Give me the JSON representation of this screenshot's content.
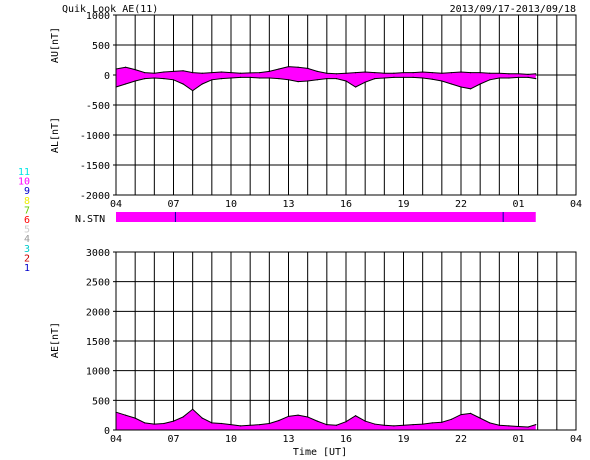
{
  "chart_data": [
    {
      "type": "area",
      "title": "Quik Look AE(11)",
      "date_range": "2013/09/17-2013/09/18",
      "ylabel_upper": "AU[nT]",
      "ylabel_lower": "AL[nT]",
      "ylim": [
        -2000,
        1000
      ],
      "y_ticks": [
        1000,
        500,
        0,
        -500,
        -1000,
        -1500,
        -2000
      ],
      "x_tick_labels": [
        "04",
        "07",
        "10",
        "13",
        "16",
        "19",
        "22",
        "01",
        "04"
      ],
      "fill_color": "#ff00ff",
      "grid": true,
      "series": [
        {
          "name": "AU",
          "x_hours": [
            4,
            4.5,
            5,
            5.5,
            6,
            6.5,
            7,
            7.5,
            8,
            8.5,
            9,
            9.5,
            10,
            10.5,
            11,
            11.5,
            12,
            12.5,
            13,
            13.5,
            14,
            14.5,
            15,
            15.5,
            16,
            16.5,
            17,
            17.5,
            18,
            18.5,
            19,
            19.5,
            20,
            20.5,
            21,
            21.5,
            22,
            22.5,
            23,
            23.5,
            24,
            24.5,
            25,
            25.5,
            25.9
          ],
          "values": [
            100,
            130,
            90,
            40,
            30,
            50,
            60,
            70,
            40,
            30,
            40,
            50,
            40,
            30,
            35,
            40,
            60,
            100,
            140,
            130,
            110,
            60,
            30,
            20,
            30,
            40,
            50,
            40,
            30,
            30,
            40,
            40,
            50,
            40,
            30,
            40,
            50,
            40,
            40,
            30,
            30,
            20,
            20,
            10,
            20
          ]
        },
        {
          "name": "AL",
          "x_hours": [
            4,
            4.5,
            5,
            5.5,
            6,
            6.5,
            7,
            7.5,
            8,
            8.5,
            9,
            9.5,
            10,
            10.5,
            11,
            11.5,
            12,
            12.5,
            13,
            13.5,
            14,
            14.5,
            15,
            15.5,
            16,
            16.5,
            17,
            17.5,
            18,
            18.5,
            19,
            19.5,
            20,
            20.5,
            21,
            21.5,
            22,
            22.5,
            23,
            23.5,
            24,
            24.5,
            25,
            25.5,
            25.9
          ],
          "values": [
            -200,
            -150,
            -100,
            -60,
            -50,
            -60,
            -80,
            -150,
            -260,
            -150,
            -80,
            -60,
            -50,
            -40,
            -40,
            -50,
            -50,
            -60,
            -80,
            -110,
            -100,
            -80,
            -60,
            -60,
            -100,
            -200,
            -120,
            -60,
            -50,
            -40,
            -40,
            -40,
            -50,
            -70,
            -100,
            -150,
            -200,
            -230,
            -150,
            -80,
            -50,
            -50,
            -40,
            -40,
            -60
          ]
        }
      ]
    },
    {
      "type": "area",
      "ylabel": "AE[nT]",
      "xlabel": "Time [UT]",
      "ylim": [
        0,
        3000
      ],
      "y_ticks": [
        3000,
        2500,
        2000,
        1500,
        1000,
        500,
        0
      ],
      "x_tick_labels": [
        "04",
        "07",
        "10",
        "13",
        "16",
        "19",
        "22",
        "01",
        "04"
      ],
      "fill_color": "#ff00ff",
      "grid": true,
      "series": [
        {
          "name": "AE",
          "x_hours": [
            4,
            4.5,
            5,
            5.5,
            6,
            6.5,
            7,
            7.5,
            8,
            8.5,
            9,
            9.5,
            10,
            10.5,
            11,
            11.5,
            12,
            12.5,
            13,
            13.5,
            14,
            14.5,
            15,
            15.5,
            16,
            16.5,
            17,
            17.5,
            18,
            18.5,
            19,
            19.5,
            20,
            20.5,
            21,
            21.5,
            22,
            22.5,
            23,
            23.5,
            24,
            24.5,
            25,
            25.5,
            25.9
          ],
          "values": [
            300,
            250,
            200,
            120,
            100,
            110,
            150,
            220,
            350,
            200,
            120,
            110,
            90,
            70,
            80,
            90,
            110,
            160,
            230,
            250,
            220,
            150,
            90,
            80,
            140,
            240,
            150,
            100,
            80,
            70,
            80,
            90,
            100,
            120,
            130,
            180,
            260,
            280,
            200,
            120,
            80,
            70,
            60,
            50,
            90
          ]
        }
      ]
    }
  ],
  "stations_panel": {
    "label": "N.STN",
    "start_hour": 4,
    "end_hour": 25.9,
    "bar_color": "#ff00ff",
    "marker_hours": [
      7.1,
      24.2
    ],
    "marker_color": "#0000aa"
  },
  "station_legend": [
    {
      "label": "11",
      "color": "#00e5e5"
    },
    {
      "label": "10",
      "color": "#ff00ff"
    },
    {
      "label": "9",
      "color": "#0000cc"
    },
    {
      "label": "8",
      "color": "#eeee00"
    },
    {
      "label": "7",
      "color": "#66cc00"
    },
    {
      "label": "6",
      "color": "#ff0000"
    },
    {
      "label": "5",
      "color": "#cccccc"
    },
    {
      "label": "4",
      "color": "#999999"
    },
    {
      "label": "3",
      "color": "#00cccc"
    },
    {
      "label": "2",
      "color": "#cc0000"
    },
    {
      "label": "1",
      "color": "#0000cc"
    }
  ]
}
